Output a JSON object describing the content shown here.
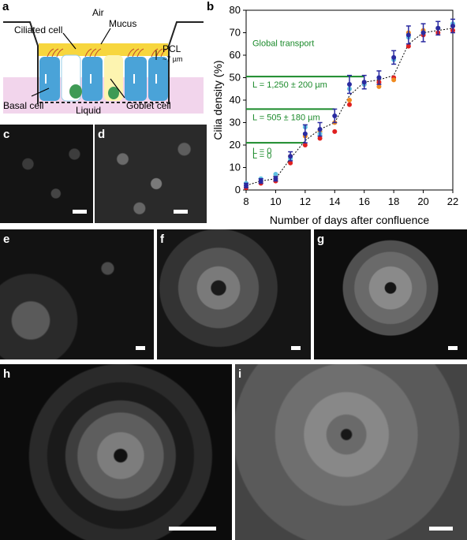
{
  "labels": {
    "a": "a",
    "b": "b",
    "c": "c",
    "d": "d",
    "e": "e",
    "f": "f",
    "g": "g",
    "h": "h",
    "i": "i"
  },
  "schematic": {
    "air": "Air",
    "mucus": "Mucus",
    "ciliated_cell": "Ciliated cell",
    "pcl": "PCL",
    "pcl_size": "~7 µm",
    "basal_cell": "Basal cell",
    "liquid": "Liquid",
    "goblet_cell": "Goblet cell"
  },
  "chart_data": {
    "type": "scatter",
    "xlabel": "Number of days after confluence",
    "ylabel": "Cilia density (%)",
    "xlim": [
      8,
      22
    ],
    "ylim": [
      0,
      80
    ],
    "xticks": [
      "8",
      "10",
      "12",
      "14",
      "16",
      "18",
      "20",
      "22"
    ],
    "yticks": [
      "0",
      "10",
      "20",
      "30",
      "40",
      "50",
      "60",
      "70",
      "80"
    ],
    "annotations": {
      "global": "Global transport",
      "l1250": "L = 1,250 ± 200 µm",
      "l505": "L = 505 ± 180 µm",
      "l0": "L = 0"
    },
    "thresholds": [
      {
        "y": 50.5,
        "x_end": 16,
        "label": "l1250"
      },
      {
        "y": 36,
        "x_end": 14,
        "label": "l505"
      },
      {
        "y": 21,
        "x_end": 12,
        "label": "l0"
      }
    ],
    "trend": {
      "x": [
        8,
        9,
        10,
        11,
        12,
        13,
        14,
        15,
        16,
        17,
        18,
        19,
        20,
        21,
        22
      ],
      "y": [
        2,
        4,
        5,
        14,
        22,
        27,
        30,
        42,
        48,
        49,
        51,
        65,
        70,
        71,
        72
      ]
    },
    "series": [
      {
        "color": "#e02020",
        "x": [
          8,
          9,
          10,
          11,
          12,
          13,
          14,
          15,
          16,
          17,
          18,
          19,
          20,
          21,
          22
        ],
        "y": [
          1,
          3,
          4,
          12,
          20,
          23,
          26,
          38,
          47,
          48,
          50,
          64,
          69,
          70,
          71
        ]
      },
      {
        "color": "#f08a20",
        "x": [
          9,
          10,
          11,
          12,
          13,
          14,
          15,
          16,
          17,
          18,
          19,
          20,
          21,
          22
        ],
        "y": [
          4,
          6,
          15,
          24,
          26,
          30,
          40,
          48,
          46,
          49,
          70,
          71,
          72,
          73
        ]
      },
      {
        "color": "#60c0e0",
        "x": [
          8,
          9,
          10,
          11,
          12,
          13,
          14,
          15,
          16,
          17,
          18,
          19,
          20,
          21,
          22
        ],
        "y": [
          3,
          5,
          7,
          14,
          28,
          25,
          33,
          45,
          47,
          50,
          58,
          68,
          70,
          72,
          74
        ]
      },
      {
        "color": "#2a2aa0",
        "x": [
          8,
          9,
          10,
          11,
          12,
          13,
          14,
          15,
          16,
          17,
          18,
          19,
          20,
          21,
          22
        ],
        "y": [
          2,
          4,
          5,
          15,
          25,
          27,
          33,
          47,
          48,
          50,
          59,
          69,
          70,
          72,
          73
        ],
        "err": [
          1,
          1,
          1,
          2,
          4,
          3,
          3,
          4,
          3,
          3,
          3,
          4,
          4,
          3,
          3
        ]
      }
    ]
  }
}
